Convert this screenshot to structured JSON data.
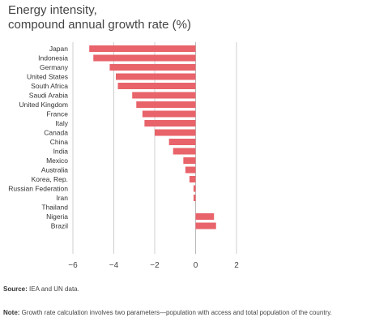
{
  "header": {
    "title_line1": "Energy intensity,",
    "title_line2": "compound annual growth rate (%)"
  },
  "chart_data": {
    "type": "bar",
    "orientation": "horizontal",
    "categories": [
      "Japan",
      "Indonesia",
      "Germany",
      "United States",
      "South Africa",
      "Saudi Arabia",
      "United Kingdom",
      "France",
      "Italy",
      "Canada",
      "China",
      "India",
      "Mexico",
      "Australia",
      "Korea, Rep.",
      "Russian Federation",
      "Iran",
      "Thailand",
      "Nigeria",
      "Brazil"
    ],
    "values": [
      -5.2,
      -5.0,
      -4.2,
      -3.9,
      -3.8,
      -3.1,
      -2.9,
      -2.6,
      -2.5,
      -2.0,
      -1.3,
      -1.1,
      -0.6,
      -0.5,
      -0.3,
      -0.1,
      -0.1,
      0.0,
      0.9,
      1.0
    ],
    "xlim": [
      -6,
      2
    ],
    "xticks": [
      -6,
      -4,
      -2,
      0,
      2
    ],
    "xtick_labels": [
      "−6",
      "−4",
      "−2",
      "0",
      "2"
    ],
    "grid": true,
    "bar_color": "#e8636a"
  },
  "footer": {
    "source_label": "Source:",
    "source_text": " IEA and UN data.",
    "note_label": "Note:",
    "note_text": " Growth rate calculation involves two parameters—population with access and total population of the country."
  }
}
